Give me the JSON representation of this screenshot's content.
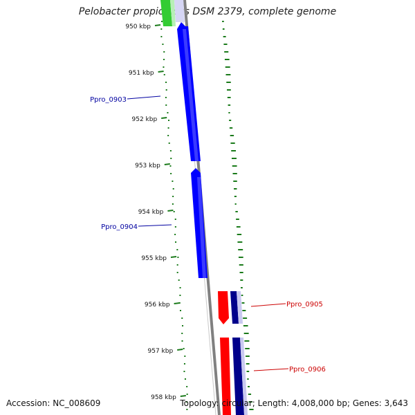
{
  "title": "Pelobacter propionicus DSM 2379, complete genome",
  "footer": {
    "accession": "Accession: NC_008609",
    "summary": "Topology: circular; Length: 4,008,000 bp; Genes: 3,643"
  },
  "scale_labels": [
    "950 kbp",
    "951 kbp",
    "952 kbp",
    "953 kbp",
    "954 kbp",
    "955 kbp",
    "956 kbp",
    "957 kbp",
    "958 kbp"
  ],
  "genes": [
    {
      "name": "Ppro_0903",
      "strand": "reverse",
      "color": "#0000ff"
    },
    {
      "name": "Ppro_0904",
      "strand": "reverse",
      "color": "#0000ff"
    },
    {
      "name": "Ppro_0905",
      "strand": "forward",
      "color": "#ff0000"
    },
    {
      "name": "Ppro_0906",
      "strand": "forward",
      "color": "#ff0000"
    }
  ],
  "colors": {
    "backbone": "#808080",
    "gc_track": "#1a7a1a",
    "reverse_gene": "#0000ff",
    "forward_gene": "#ff0000",
    "cds_dark": "#00008b",
    "upstream_gene": "#33cc33"
  }
}
